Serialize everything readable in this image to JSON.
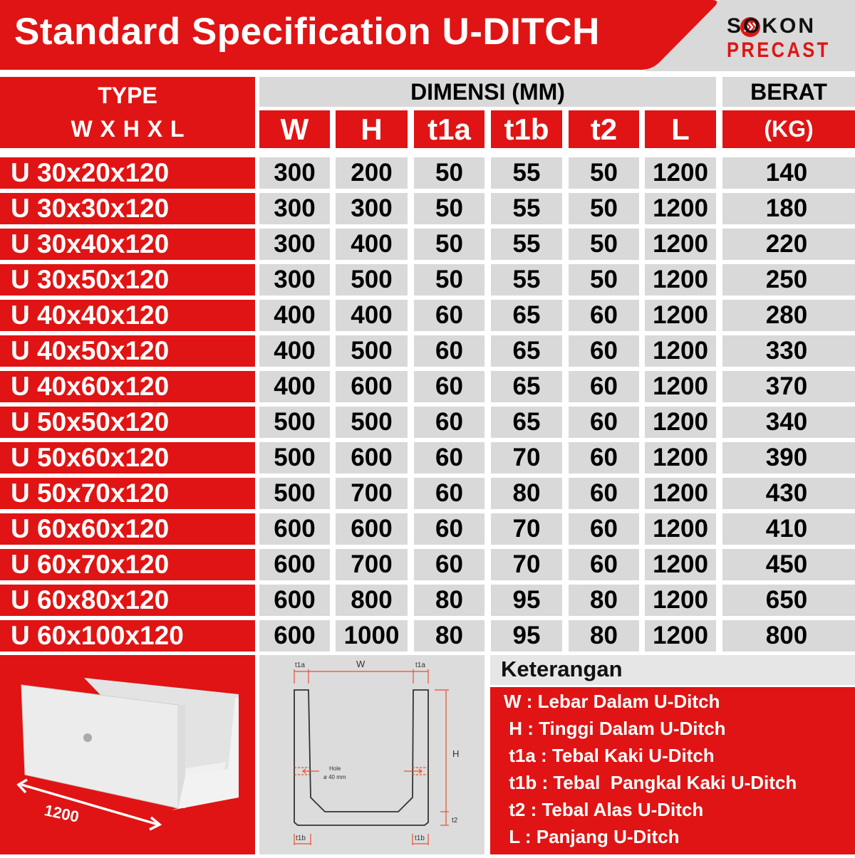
{
  "header": {
    "title": "Standard Specification U-DITCH",
    "logo": {
      "top": "SOKON",
      "bottom": "PRECAST"
    }
  },
  "colors": {
    "brand_red": "#e01414",
    "cell_gray": "#d9d9d9",
    "logo_black": "#111111"
  },
  "table": {
    "type_header": {
      "line1": "TYPE",
      "line2": "W X H X L"
    },
    "dimension_header": "DIMENSI (MM)",
    "weight_header": {
      "line1": "BERAT",
      "line2": "(KG)"
    },
    "columns": [
      "W",
      "H",
      "t1a",
      "t1b",
      "t2",
      "L"
    ],
    "rows": [
      {
        "type": "U 30x20x120",
        "values": [
          "300",
          "200",
          "50",
          "55",
          "50",
          "1200"
        ],
        "weight": "140"
      },
      {
        "type": "U 30x30x120",
        "values": [
          "300",
          "300",
          "50",
          "55",
          "50",
          "1200"
        ],
        "weight": "180"
      },
      {
        "type": "U 30x40x120",
        "values": [
          "300",
          "400",
          "50",
          "55",
          "50",
          "1200"
        ],
        "weight": "220"
      },
      {
        "type": "U 30x50x120",
        "values": [
          "300",
          "500",
          "50",
          "55",
          "50",
          "1200"
        ],
        "weight": "250"
      },
      {
        "type": "U 40x40x120",
        "values": [
          "400",
          "400",
          "60",
          "65",
          "60",
          "1200"
        ],
        "weight": "280"
      },
      {
        "type": "U 40x50x120",
        "values": [
          "400",
          "500",
          "60",
          "65",
          "60",
          "1200"
        ],
        "weight": "330"
      },
      {
        "type": "U 40x60x120",
        "values": [
          "400",
          "600",
          "60",
          "65",
          "60",
          "1200"
        ],
        "weight": "370"
      },
      {
        "type": "U 50x50x120",
        "values": [
          "500",
          "500",
          "60",
          "65",
          "60",
          "1200"
        ],
        "weight": "340"
      },
      {
        "type": "U 50x60x120",
        "values": [
          "500",
          "600",
          "60",
          "70",
          "60",
          "1200"
        ],
        "weight": "390"
      },
      {
        "type": "U 50x70x120",
        "values": [
          "500",
          "700",
          "60",
          "80",
          "60",
          "1200"
        ],
        "weight": "430"
      },
      {
        "type": "U 60x60x120",
        "values": [
          "600",
          "600",
          "60",
          "70",
          "60",
          "1200"
        ],
        "weight": "410"
      },
      {
        "type": "U 60x70x120",
        "values": [
          "600",
          "700",
          "60",
          "70",
          "60",
          "1200"
        ],
        "weight": "450"
      },
      {
        "type": "U 60x80x120",
        "values": [
          "600",
          "800",
          "80",
          "95",
          "80",
          "1200"
        ],
        "weight": "650"
      },
      {
        "type": "U 60x100x120",
        "values": [
          "600",
          "1000",
          "80",
          "95",
          "80",
          "1200"
        ],
        "weight": "800"
      }
    ]
  },
  "photo": {
    "length_label": "1200"
  },
  "diagram": {
    "labels": {
      "t1a": "t1a",
      "w": "W",
      "h": "H",
      "t2": "t2",
      "t1b": "t1b",
      "hole": "Hole",
      "hole_size": "ø 40 mm"
    }
  },
  "legend": {
    "title": "Keterangan",
    "items": [
      "W : Lebar Dalam U-Ditch",
      " H : Tinggi Dalam U-Ditch",
      " t1a : Tebal Kaki U-Ditch",
      " t1b : Tebal  Pangkal Kaki U-Ditch",
      " t2 : Tebal Alas U-Ditch",
      " L : Panjang U-Ditch"
    ]
  }
}
